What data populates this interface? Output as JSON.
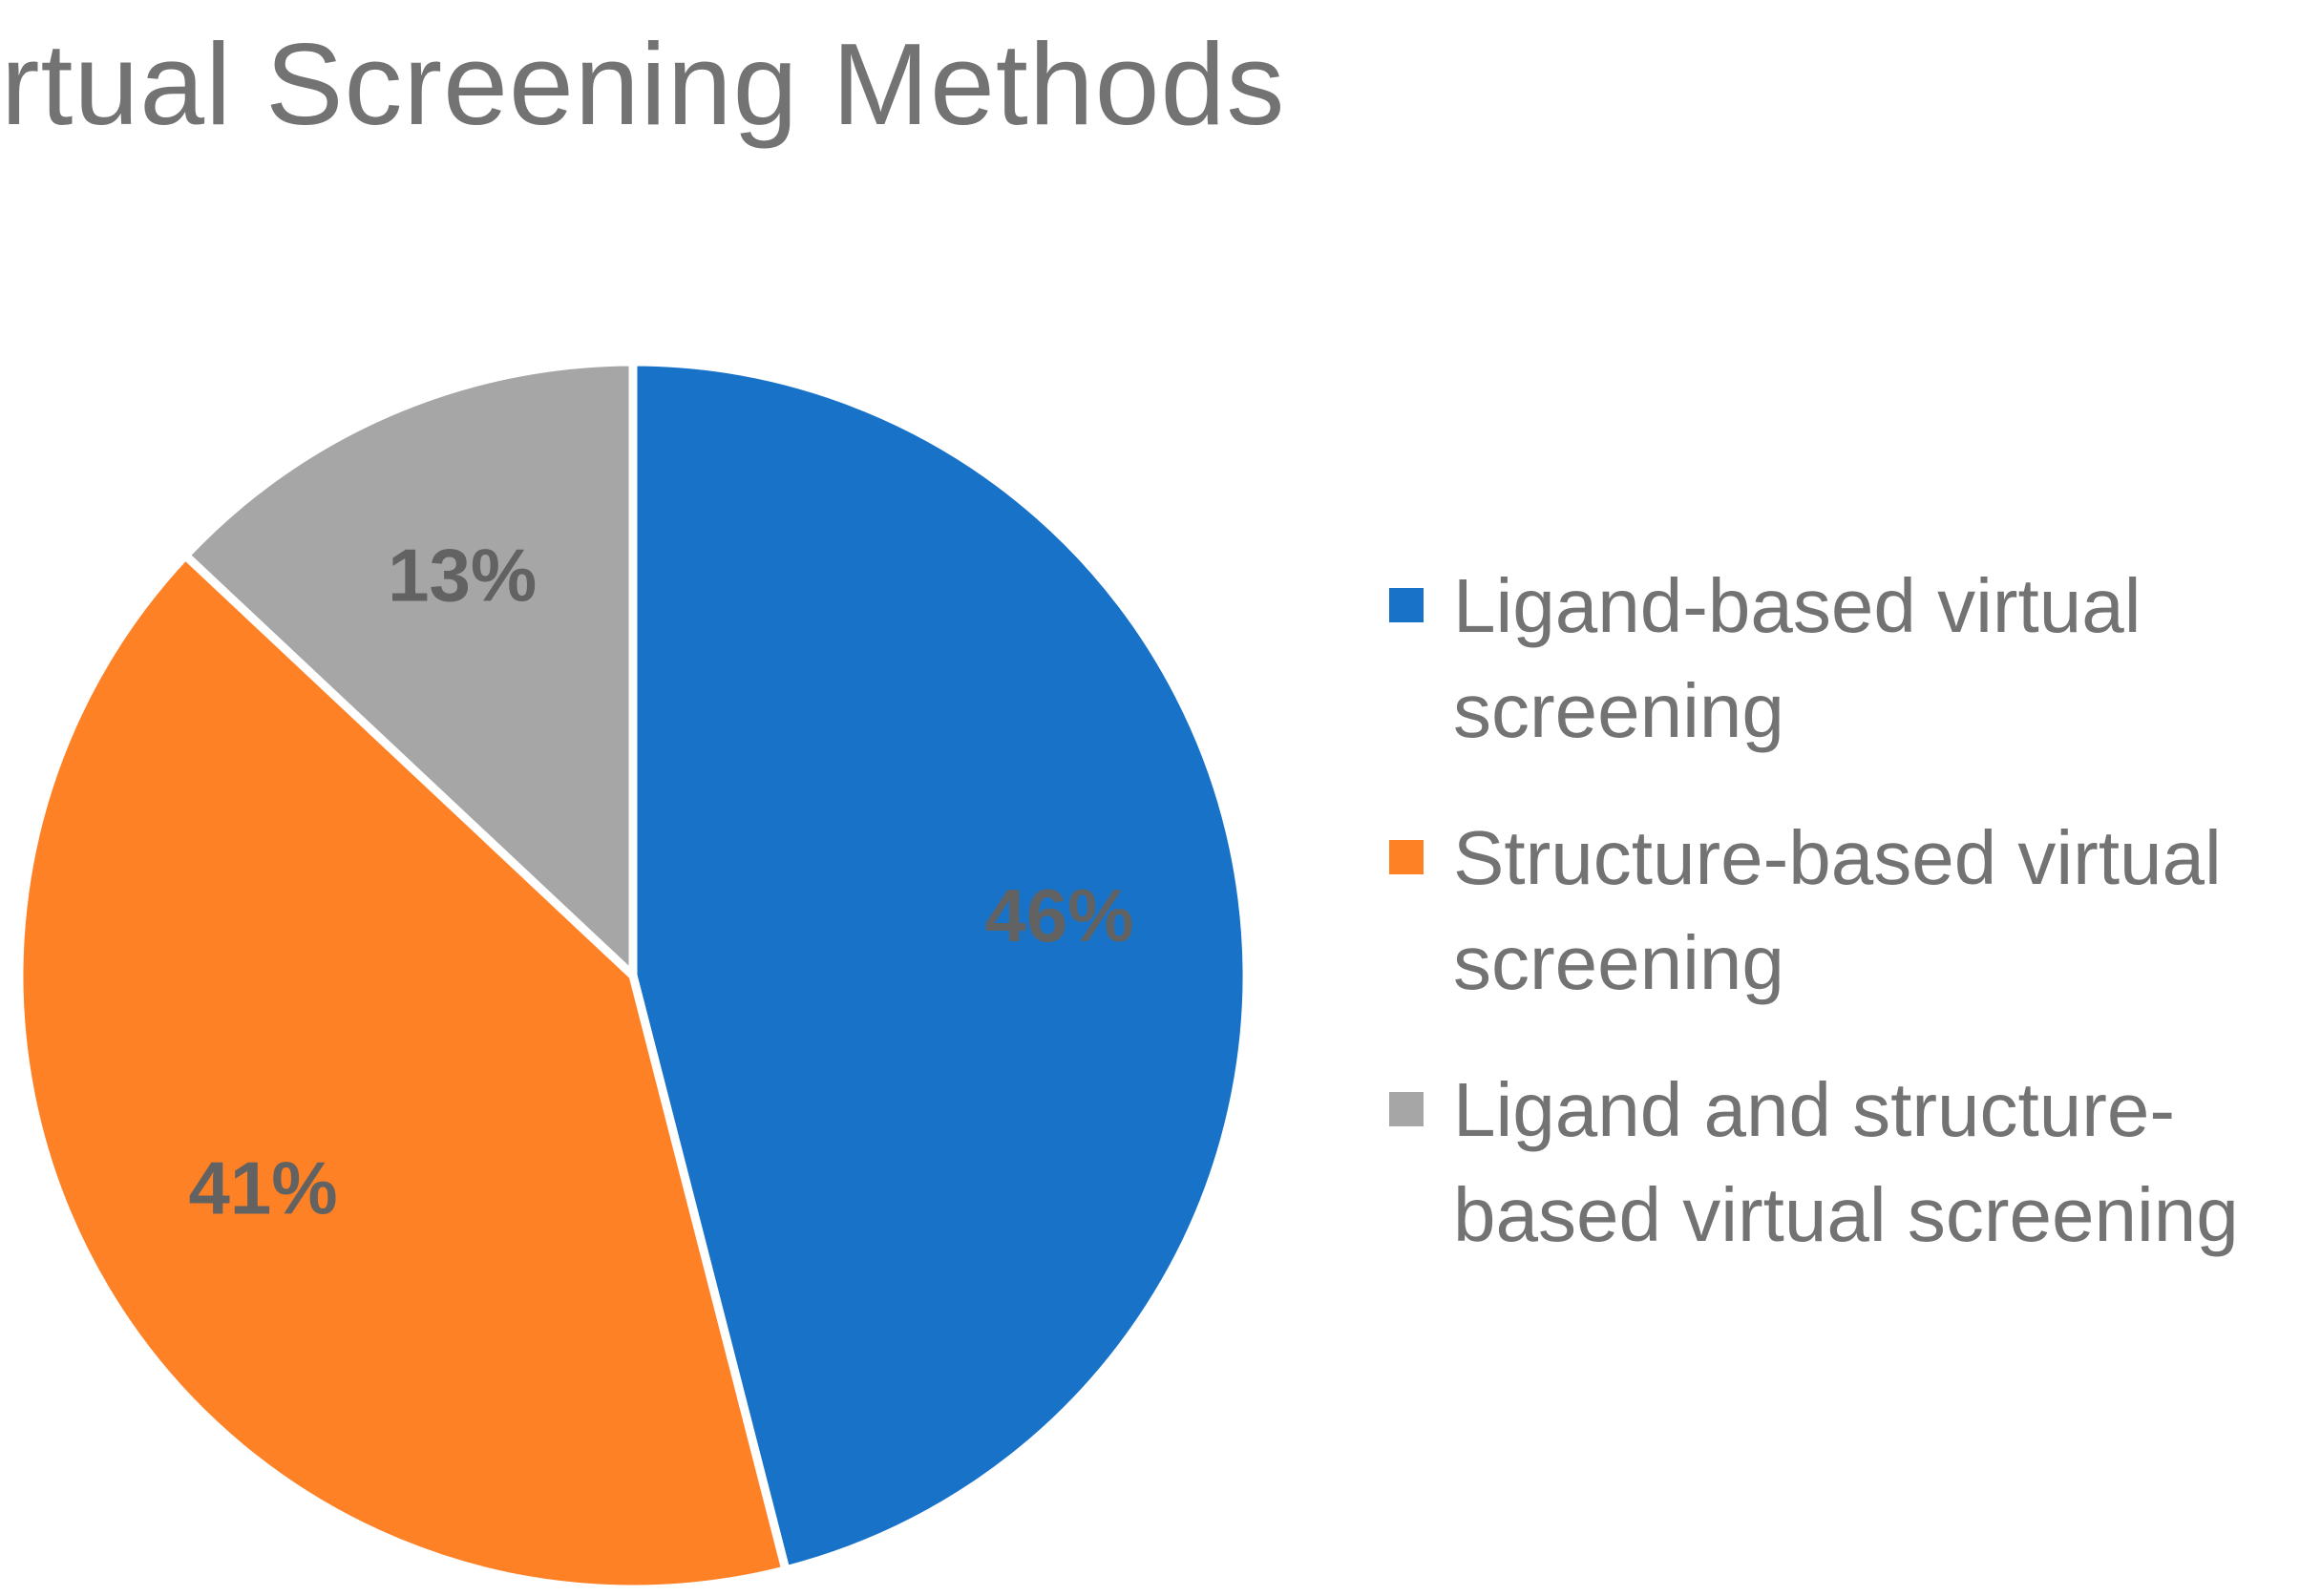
{
  "chart_data": {
    "type": "pie",
    "title": "Virtual Screening Methods",
    "slices": [
      {
        "name": "Ligand-based virtual screening",
        "value": 46,
        "label": "46%",
        "color": "#1873C8"
      },
      {
        "name": "Structure-based virtual screening",
        "value": 41,
        "label": "41%",
        "color": "#FF8126"
      },
      {
        "name": "Ligand and structure-based virtual screening",
        "value": 13,
        "label": "13%",
        "color": "#A6A6A6"
      }
    ],
    "legend_position": "right",
    "start_angle": "12 o'clock",
    "direction": "clockwise"
  }
}
